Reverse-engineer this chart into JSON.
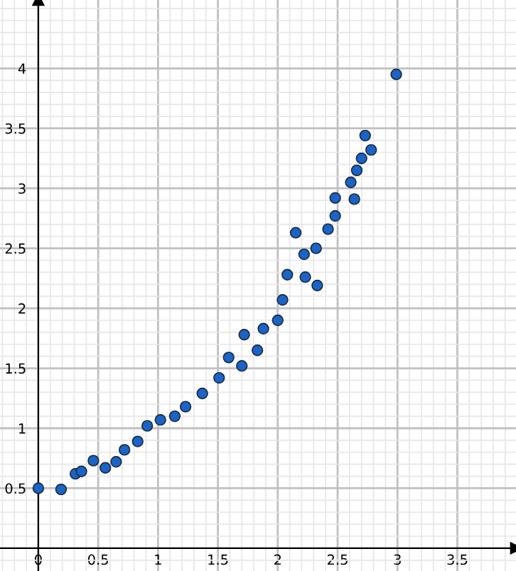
{
  "chart_data": {
    "type": "scatter",
    "marker": "circle",
    "grid": true,
    "x": [
      0.0,
      0.19,
      0.31,
      0.36,
      0.46,
      0.56,
      0.65,
      0.72,
      0.83,
      0.91,
      1.02,
      1.14,
      1.23,
      1.37,
      1.51,
      1.59,
      1.7,
      1.72,
      1.83,
      1.88,
      2.0,
      2.04,
      2.08,
      2.23,
      2.33,
      2.22,
      2.32,
      2.15,
      2.42,
      2.48,
      2.48,
      2.64,
      2.61,
      2.66,
      2.7,
      2.78,
      2.73,
      2.99
    ],
    "series": [
      {
        "color": "#1a64c8",
        "values": [
          0.5,
          0.49,
          0.62,
          0.64,
          0.73,
          0.67,
          0.72,
          0.82,
          0.89,
          1.02,
          1.07,
          1.1,
          1.18,
          1.29,
          1.42,
          1.59,
          1.52,
          1.78,
          1.65,
          1.83,
          1.9,
          2.07,
          2.28,
          2.26,
          2.19,
          2.45,
          2.5,
          2.63,
          2.66,
          2.77,
          2.92,
          2.91,
          3.05,
          3.15,
          3.25,
          3.32,
          3.44,
          3.95
        ]
      }
    ],
    "xlim": [
      -0.32,
      3.99
    ],
    "ylim": [
      -0.19,
      4.57
    ],
    "xticks": [
      0,
      0.5,
      1,
      1.5,
      2,
      2.5,
      3,
      3.5
    ],
    "yticks": [
      0.5,
      1,
      1.5,
      2,
      2.5,
      3,
      3.5,
      4
    ]
  }
}
